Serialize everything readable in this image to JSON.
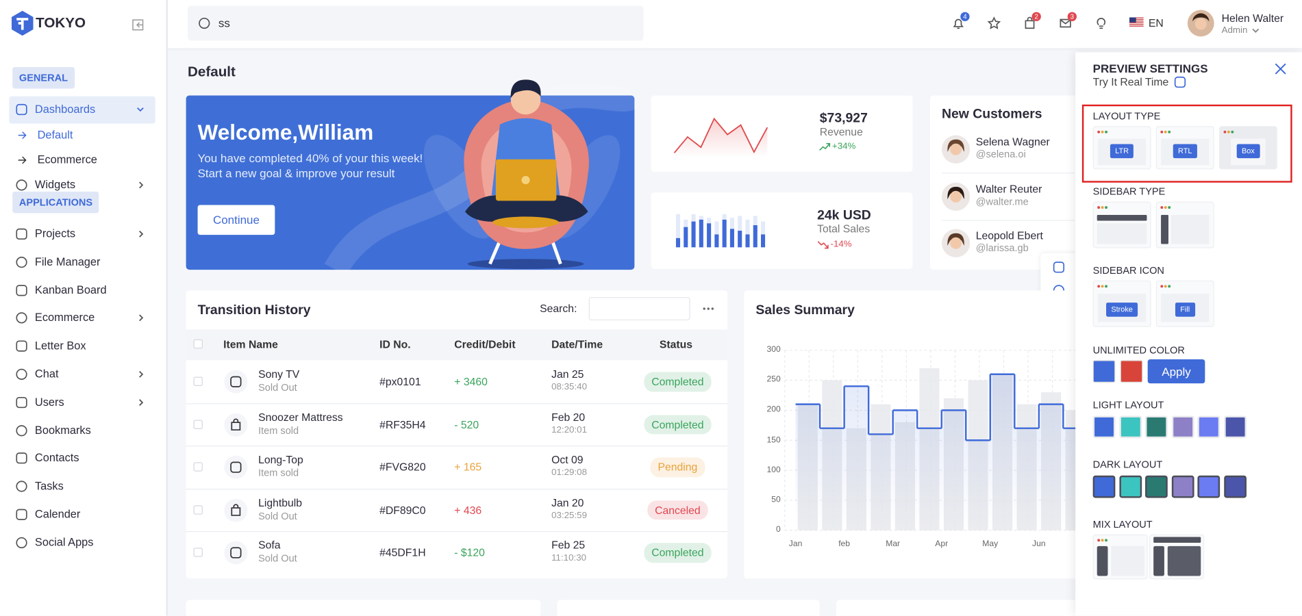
{
  "brand": "TOKYO",
  "search": {
    "query": "ss"
  },
  "header": {
    "badges": [
      4,
      2,
      3
    ],
    "language": "EN",
    "user_name": "Helen Walter",
    "user_role": "Admin"
  },
  "sidebar": {
    "sections": [
      {
        "title": "GENERAL",
        "items": [
          {
            "label": "Dashboards",
            "expanded": true,
            "children": [
              {
                "label": "Default",
                "active": true
              },
              {
                "label": "Ecommerce"
              }
            ]
          },
          {
            "label": "Widgets",
            "has_submenu": true
          }
        ]
      },
      {
        "title": "APPLICATIONS",
        "items": [
          {
            "label": "Projects",
            "has_submenu": true
          },
          {
            "label": "File Manager"
          },
          {
            "label": "Kanban Board"
          },
          {
            "label": "Ecommerce",
            "has_submenu": true
          },
          {
            "label": "Letter Box"
          },
          {
            "label": "Chat",
            "has_submenu": true
          },
          {
            "label": "Users",
            "has_submenu": true
          },
          {
            "label": "Bookmarks"
          },
          {
            "label": "Contacts"
          },
          {
            "label": "Tasks"
          },
          {
            "label": "Calender"
          },
          {
            "label": "Social Apps"
          }
        ]
      }
    ]
  },
  "page_title": "Default",
  "welcome": {
    "title": "Welcome,William",
    "lines": [
      "You have completed 40% of your this week!",
      "Start a new goal & improve your result"
    ],
    "button": "Continue",
    "color": "#3f6fd6"
  },
  "revenue": {
    "value": "$73,927",
    "label": "Revenue",
    "change": "+34%",
    "sparkline": [
      4,
      24,
      11,
      47,
      27,
      39,
      5,
      36
    ],
    "color": "#e0494b",
    "change_color": "#3aa45c"
  },
  "total_sales": {
    "value": "24k USD",
    "label": "Total Sales",
    "change": "-14%",
    "bars": [
      10,
      22,
      28,
      30,
      26,
      14,
      30,
      20,
      18,
      14,
      24,
      14
    ],
    "background_bars": [
      36,
      30,
      36,
      34,
      32,
      28,
      36,
      32,
      34,
      30,
      34,
      28
    ],
    "color": "#3f6ad8",
    "change_color": "#e0474f"
  },
  "new_customers": {
    "title": "New Customers",
    "customers": [
      {
        "name": "Selena Wagner",
        "handle": "@selena.oi"
      },
      {
        "name": "Walter Reuter",
        "handle": "@walter.me"
      },
      {
        "name": "Leopold Ebert",
        "handle": "@larissa.gb"
      }
    ]
  },
  "transactions": {
    "title": "Transition History",
    "search_label": "Search:",
    "columns": [
      "Item Name",
      "ID No.",
      "Credit/Debit",
      "Date/Time",
      "Status"
    ],
    "rows": [
      {
        "item": "Sony TV",
        "note": "Sold Out",
        "id": "#px0101",
        "amount": "+ 3460",
        "date": "Jan 25",
        "time": "08:35:40",
        "status": "Completed",
        "color": "#3aa45c"
      },
      {
        "item": "Snoozer Mattress",
        "note": "Item sold",
        "id": "#RF35H4",
        "amount": "- 520",
        "date": "Feb 20",
        "time": "12:20:01",
        "status": "Completed",
        "color": "#3aa45c"
      },
      {
        "item": "Long-Top",
        "note": "Item sold",
        "id": "#FVG820",
        "amount": "+ 165",
        "date": "Oct 09",
        "time": "01:29:08",
        "status": "Pending",
        "color": "#e9a23b"
      },
      {
        "item": "Lightbulb",
        "note": "Sold Out",
        "id": "#DF89C0",
        "amount": "+ 436",
        "date": "Jan 20",
        "time": "03:25:59",
        "status": "Canceled",
        "color": "#e0474f"
      },
      {
        "item": "Sofa",
        "note": "Sold Out",
        "id": "#45DF1H",
        "amount": "- $120",
        "date": "Feb 25",
        "time": "11:10:30",
        "status": "Completed",
        "color": "#3aa45c"
      }
    ]
  },
  "sales_summary": {
    "title": "Sales Summary",
    "type": "step-line",
    "categories": [
      "Jan",
      "feb",
      "Mar",
      "Apr",
      "May",
      "Jun"
    ],
    "ylim": [
      0,
      300
    ],
    "yticks": [
      0,
      50,
      100,
      150,
      200,
      250,
      300
    ],
    "line_values": [
      210,
      170,
      240,
      160,
      200,
      170,
      200,
      150,
      260,
      170,
      210,
      170
    ],
    "bar_values": [
      210,
      250,
      170,
      210,
      180,
      270,
      220,
      250,
      260,
      210,
      230,
      200
    ],
    "line_color": "#3f6ad8",
    "bar_color": "#e6e7eb",
    "grid": true
  },
  "preview": {
    "title": "PREVIEW SETTINGS",
    "subtitle": "Try It Real Time",
    "layout_type": {
      "title": "LAYOUT TYPE",
      "options": [
        "LTR",
        "RTL",
        "Box"
      ]
    },
    "sidebar_type": {
      "title": "SIDEBAR TYPE"
    },
    "sidebar_icon": {
      "title": "SIDEBAR ICON",
      "options": [
        "Stroke",
        "Fill"
      ]
    },
    "unlimited_color": {
      "title": "UNLIMITED COLOR",
      "colors": [
        "#3f6ad8",
        "#d9443a"
      ],
      "button": "Apply"
    },
    "light_layout": {
      "title": "LIGHT LAYOUT",
      "colors": [
        "#3f6ad8",
        "#3cc4c0",
        "#2a7a72",
        "#8e80c6",
        "#6b7bf2",
        "#4b56aa"
      ]
    },
    "dark_layout": {
      "title": "DARK LAYOUT",
      "colors": [
        "#3f6ad8",
        "#3cc4c0",
        "#2a7a72",
        "#8e80c6",
        "#6b7bf2",
        "#4b56aa"
      ]
    },
    "mix_layout": {
      "title": "MIX LAYOUT"
    }
  }
}
